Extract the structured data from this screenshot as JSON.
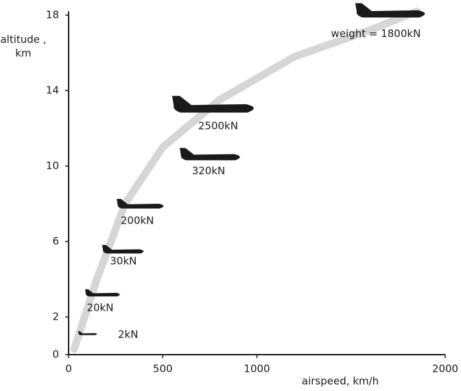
{
  "chart_data": {
    "type": "scatter",
    "x_label": "airspeed, km/h",
    "y_label": [
      "altitude ,",
      "km"
    ],
    "xlim": [
      0,
      2000
    ],
    "ylim": [
      0,
      18.2
    ],
    "xticks": [
      0,
      500,
      1000,
      2000
    ],
    "yticks": [
      0,
      2,
      6,
      10,
      14,
      18
    ],
    "series": [
      {
        "color": "#1a1a1a",
        "x": [
          102,
          182,
          291,
          383,
          754,
          772,
          1712
        ],
        "values": [
          1.1,
          3.2,
          5.5,
          7.9,
          10.5,
          13.1,
          18.1
        ],
        "labels": [
          "2kN",
          "20kN",
          "30kN",
          "200kN",
          "320kN",
          "2500kN",
          "weight = 1800kN"
        ]
      },
      {
        "color": "#d6d6d6",
        "x": [
          30,
          150,
          300,
          500,
          800,
          1200,
          1600,
          1850
        ],
        "values": [
          0.3,
          4,
          8,
          11,
          13.5,
          15.8,
          17.2,
          18.2
        ]
      }
    ]
  }
}
